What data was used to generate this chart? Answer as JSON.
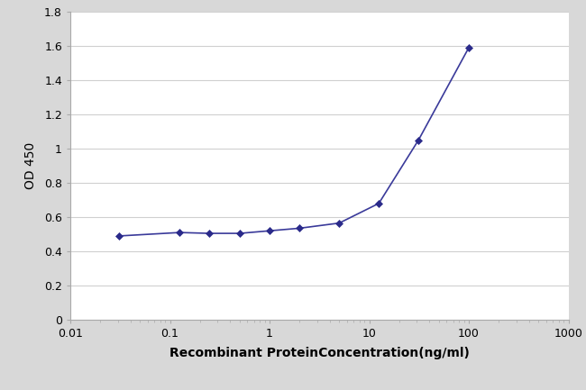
{
  "x_values": [
    0.031,
    0.125,
    0.25,
    0.5,
    1.0,
    2.0,
    5.0,
    12.5,
    31.25,
    100.0
  ],
  "y_values": [
    0.49,
    0.51,
    0.505,
    0.505,
    0.52,
    0.535,
    0.565,
    0.68,
    1.05,
    1.59
  ],
  "line_color": "#3a3a9a",
  "marker_color": "#2a2a8a",
  "marker_style": "D",
  "marker_size": 4,
  "line_width": 1.2,
  "xlabel": "Recombinant ProteinConcentration(ng/ml)",
  "ylabel": "OD 450",
  "xlim": [
    0.01,
    1000
  ],
  "ylim": [
    0,
    1.8
  ],
  "yticks": [
    0,
    0.2,
    0.4,
    0.6,
    0.8,
    1.0,
    1.2,
    1.4,
    1.6,
    1.8
  ],
  "xtick_positions": [
    0.01,
    0.1,
    1,
    10,
    100,
    1000
  ],
  "xtick_labels": [
    "0.01",
    "0.1",
    "1",
    "10",
    "100",
    "1000"
  ],
  "grid_color": "#d0d0d0",
  "plot_bgcolor": "#ffffff",
  "figure_facecolor": "#d8d8d8",
  "xlabel_fontsize": 10,
  "ylabel_fontsize": 10,
  "tick_fontsize": 9,
  "xlabel_fontweight": "bold"
}
